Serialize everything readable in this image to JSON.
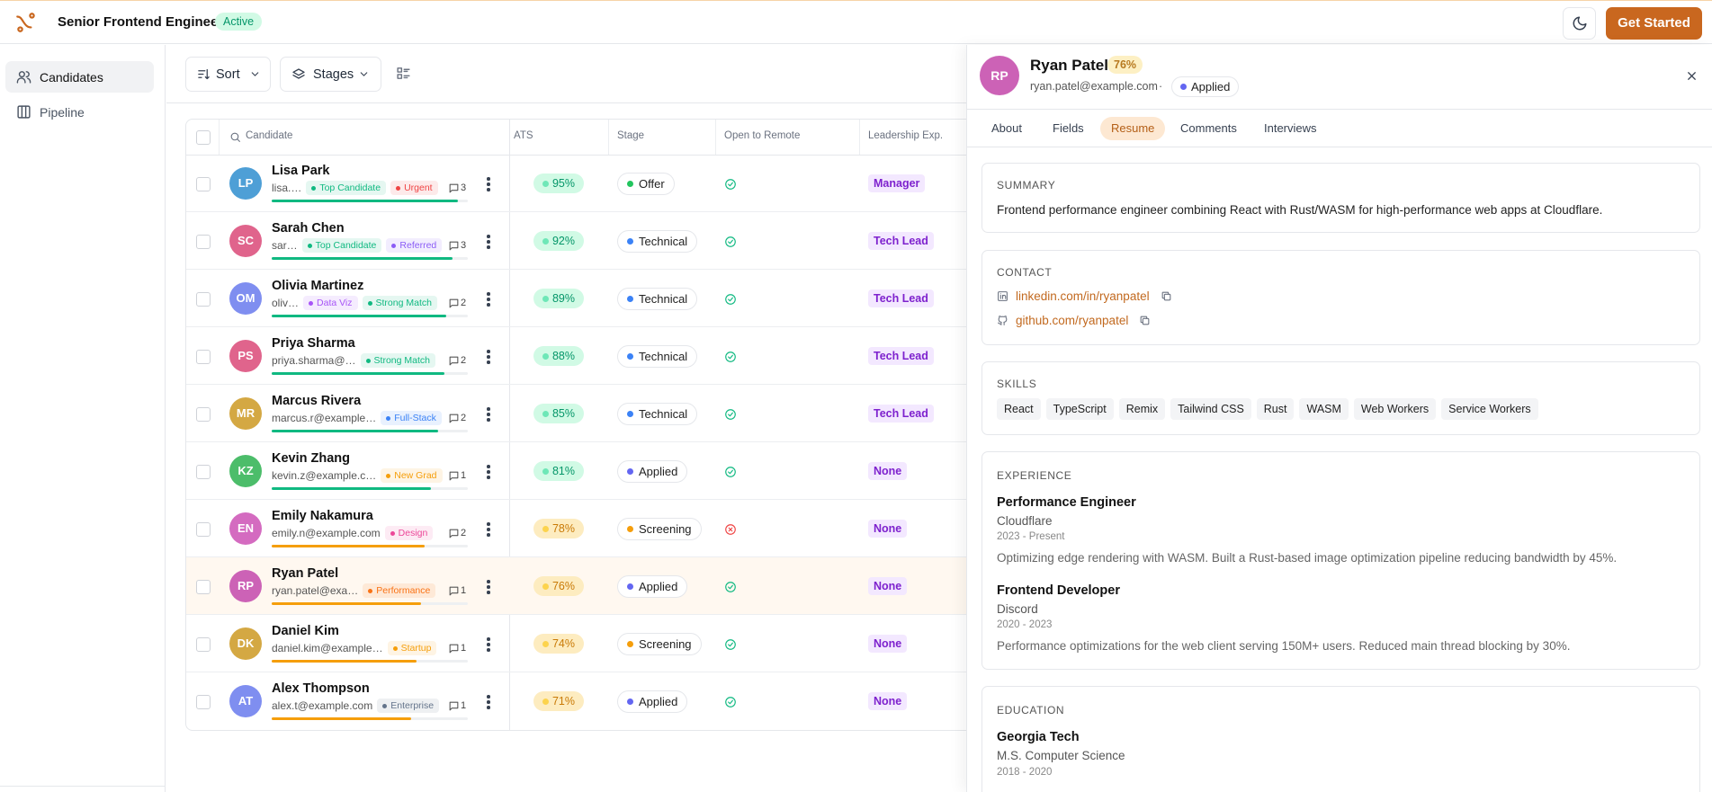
{
  "header": {
    "title": "Senior Frontend Engineer",
    "status": "Active",
    "cta": "Get Started"
  },
  "sidebar": {
    "items": [
      "Candidates",
      "Pipeline"
    ]
  },
  "toolbar": {
    "sort": "Sort",
    "stages": "Stages"
  },
  "table": {
    "columns": [
      "Candidate",
      "ATS",
      "Stage",
      "Open to Remote",
      "Leadership Exp."
    ],
    "rows": [
      {
        "initials": "LP",
        "avatar_color": "#4e9fd6",
        "name": "Lisa Park",
        "email": "lisa.…",
        "tags": [
          {
            "label": "Top Candidate",
            "color": "#10b981"
          },
          {
            "label": "Urgent",
            "color": "#ef4444"
          }
        ],
        "comments": "3",
        "ats": "95%",
        "stage": "Offer",
        "stage_color": "#22c55e",
        "remote": true,
        "leadership": "Manager"
      },
      {
        "initials": "SC",
        "avatar_color": "#e0648c",
        "name": "Sarah Chen",
        "email": "sar…",
        "tags": [
          {
            "label": "Top Candidate",
            "color": "#10b981"
          },
          {
            "label": "Referred",
            "color": "#8b5cf6"
          }
        ],
        "comments": "3",
        "ats": "92%",
        "stage": "Technical",
        "stage_color": "#3b82f6",
        "remote": true,
        "leadership": "Tech Lead"
      },
      {
        "initials": "OM",
        "avatar_color": "#7f8ef0",
        "name": "Olivia Martinez",
        "email": "oliv…",
        "tags": [
          {
            "label": "Data Viz",
            "color": "#a855f7"
          },
          {
            "label": "Strong Match",
            "color": "#10b981"
          }
        ],
        "comments": "2",
        "ats": "89%",
        "stage": "Technical",
        "stage_color": "#3b82f6",
        "remote": true,
        "leadership": "Tech Lead"
      },
      {
        "initials": "PS",
        "avatar_color": "#e0648c",
        "name": "Priya Sharma",
        "email": "priya.sharma@…",
        "tags": [
          {
            "label": "Strong Match",
            "color": "#10b981"
          }
        ],
        "comments": "2",
        "ats": "88%",
        "stage": "Technical",
        "stage_color": "#3b82f6",
        "remote": true,
        "leadership": "Tech Lead"
      },
      {
        "initials": "MR",
        "avatar_color": "#d4a843",
        "name": "Marcus Rivera",
        "email": "marcus.r@example…",
        "tags": [
          {
            "label": "Full-Stack",
            "color": "#3b82f6"
          }
        ],
        "comments": "2",
        "ats": "85%",
        "stage": "Technical",
        "stage_color": "#3b82f6",
        "remote": true,
        "leadership": "Tech Lead"
      },
      {
        "initials": "KZ",
        "avatar_color": "#4cbd6a",
        "name": "Kevin Zhang",
        "email": "kevin.z@example.c…",
        "tags": [
          {
            "label": "New Grad",
            "color": "#f59e0b"
          }
        ],
        "comments": "1",
        "ats": "81%",
        "stage": "Applied",
        "stage_color": "#6366f1",
        "remote": true,
        "leadership": "None"
      },
      {
        "initials": "EN",
        "avatar_color": "#d46bc0",
        "name": "Emily Nakamura",
        "email": "emily.n@example.com",
        "tags": [
          {
            "label": "Design",
            "color": "#ec4899"
          }
        ],
        "comments": "2",
        "ats": "78%",
        "stage": "Screening",
        "stage_color": "#f59e0b",
        "remote": false,
        "leadership": "None"
      },
      {
        "initials": "RP",
        "avatar_color": "#cc62b6",
        "name": "Ryan Patel",
        "email": "ryan.patel@exa…",
        "tags": [
          {
            "label": "Performance",
            "color": "#f97316"
          }
        ],
        "comments": "1",
        "ats": "76%",
        "stage": "Applied",
        "stage_color": "#6366f1",
        "remote": true,
        "leadership": "None"
      },
      {
        "initials": "DK",
        "avatar_color": "#d4a843",
        "name": "Daniel Kim",
        "email": "daniel.kim@example…",
        "tags": [
          {
            "label": "Startup",
            "color": "#f59e0b"
          }
        ],
        "comments": "1",
        "ats": "74%",
        "stage": "Screening",
        "stage_color": "#f59e0b",
        "remote": true,
        "leadership": "None"
      },
      {
        "initials": "AT",
        "avatar_color": "#7f8ef0",
        "name": "Alex Thompson",
        "email": "alex.t@example.com",
        "tags": [
          {
            "label": "Enterprise",
            "color": "#64748b"
          }
        ],
        "comments": "1",
        "ats": "71%",
        "stage": "Applied",
        "stage_color": "#6366f1",
        "remote": true,
        "leadership": "None"
      }
    ]
  },
  "panel": {
    "initials": "RP",
    "avatar_color": "#cc62b6",
    "name": "Ryan Patel",
    "score": "76%",
    "email": "ryan.patel@example.com",
    "separator": "·",
    "status": "Applied",
    "tabs": [
      "About",
      "Fields",
      "Resume",
      "Comments",
      "Interviews"
    ],
    "active_tab": "Resume",
    "summary": {
      "heading": "SUMMARY",
      "text": "Frontend performance engineer combining React with Rust/WASM for high-performance web apps at Cloudflare."
    },
    "contact": {
      "heading": "CONTACT",
      "links": [
        "linkedin.com/in/ryanpatel",
        "github.com/ryanpatel"
      ]
    },
    "skills": {
      "heading": "SKILLS",
      "items": [
        "React",
        "TypeScript",
        "Remix",
        "Tailwind CSS",
        "Rust",
        "WASM",
        "Web Workers",
        "Service Workers"
      ]
    },
    "experience": {
      "heading": "EXPERIENCE",
      "items": [
        {
          "title": "Performance Engineer",
          "company": "Cloudflare",
          "dates": "2023 - Present",
          "description": "Optimizing edge rendering with WASM. Built a Rust-based image optimization pipeline reducing bandwidth by 45%."
        },
        {
          "title": "Frontend Developer",
          "company": "Discord",
          "dates": "2020 - 2023",
          "description": "Performance optimizations for the web client serving 150M+ users. Reduced main thread blocking by 30%."
        }
      ]
    },
    "education": {
      "heading": "EDUCATION",
      "items": [
        {
          "school": "Georgia Tech",
          "degree": "M.S. Computer Science",
          "dates": "2018 - 2020"
        }
      ]
    }
  }
}
